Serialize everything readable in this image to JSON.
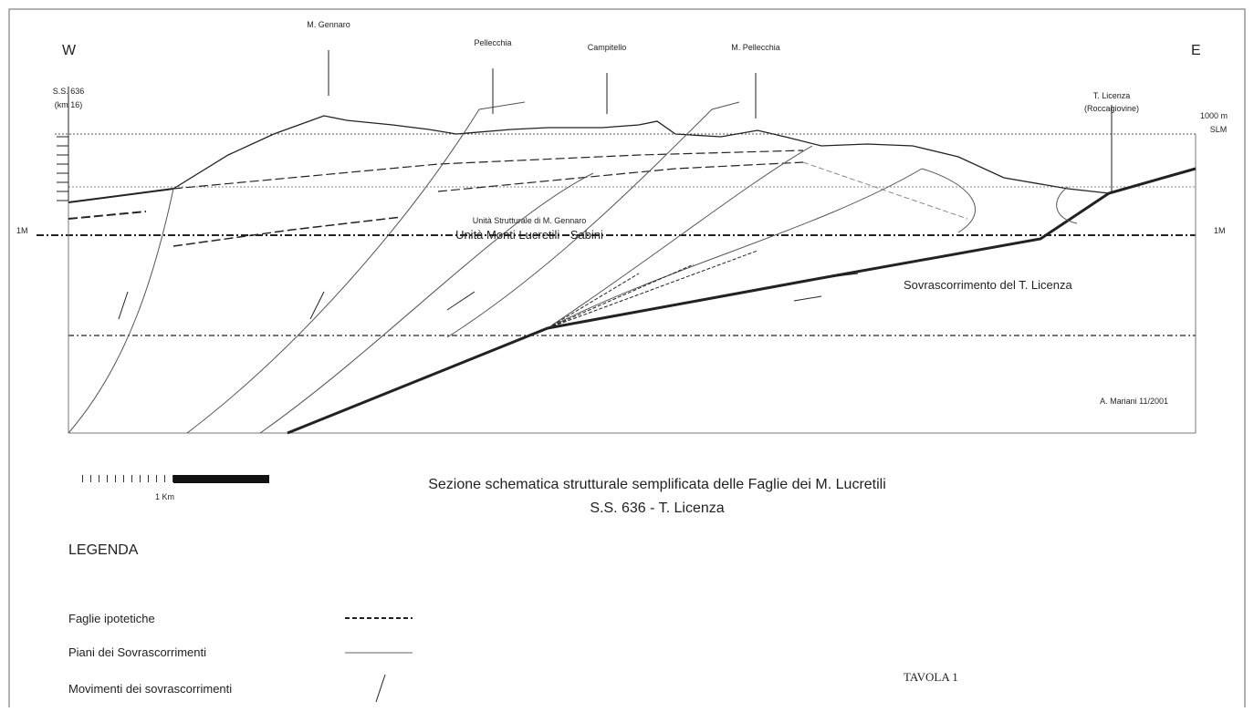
{
  "section": {
    "west": "W",
    "east": "E",
    "peaks": [
      "M. Gennaro",
      "Pellecchia",
      "Campitello",
      "M. Pellecchia"
    ],
    "left_point": [
      "S.S. 636",
      "(km 16)"
    ],
    "right_point": [
      "T. Licenza",
      "(Roccagiovine)"
    ],
    "elevation": [
      "1000 m",
      "SLM"
    ],
    "level_left": "1M",
    "level_right": "1M",
    "unit_small": "Unità Strutturale di M. Gennaro",
    "unit_large": "Unità Monti Lucretili - Sabini",
    "thrust": "Sovrascorrimento del T. Licenza",
    "author": "A. Mariani 11/2001"
  },
  "scale": "1 Km",
  "caption": [
    "Sezione schematica strutturale semplificata delle Faglie dei M. Lucretili",
    "S.S. 636 - T. Licenza"
  ],
  "legend": {
    "title": "LEGENDA",
    "items": [
      "Faglie ipotetiche",
      "Piani dei Sovrascorrimenti",
      "Movimenti dei sovrascorrimenti"
    ]
  },
  "plate": "TAVOLA 1"
}
